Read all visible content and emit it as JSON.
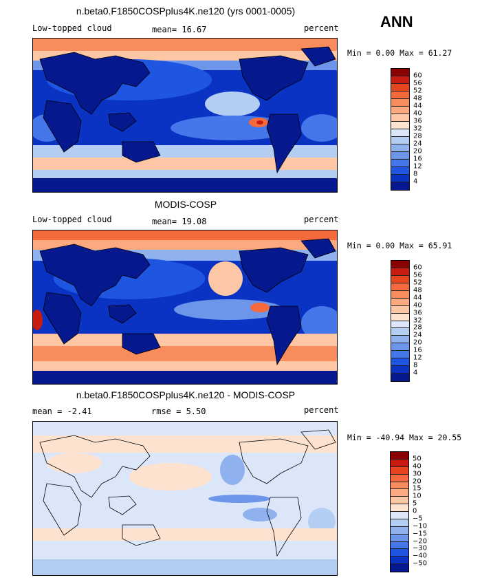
{
  "season": "ANN",
  "panels": [
    {
      "title": "n.beta0.F1850COSPplus4K.ne120 (yrs 0001-0005)",
      "left": "Low-topped cloud",
      "center": "mean=  16.67",
      "right": "percent",
      "stat": "Min =   0.00 Max =  61.27",
      "ticks": [
        "60",
        "56",
        "52",
        "48",
        "44",
        "40",
        "36",
        "32",
        "28",
        "24",
        "20",
        "16",
        "12",
        "8",
        "4"
      ],
      "colors": [
        "#8b0000",
        "#c81c10",
        "#e6451f",
        "#f46a3c",
        "#f98c5c",
        "#fca97f",
        "#fdc7a6",
        "#fde2d0",
        "#dbe7f9",
        "#b4cdf3",
        "#8fb2ee",
        "#6d96ea",
        "#4677ea",
        "#1f56e1",
        "#0a33c4",
        "#05188e"
      ]
    },
    {
      "title": "MODIS-COSP",
      "left": "Low-topped cloud",
      "center": "mean=  19.08",
      "right": "percent",
      "stat": "Min =   0.00 Max =  65.91",
      "ticks": [
        "60",
        "56",
        "52",
        "48",
        "44",
        "40",
        "36",
        "32",
        "28",
        "24",
        "20",
        "16",
        "12",
        "8",
        "4"
      ],
      "colors": [
        "#8b0000",
        "#c81c10",
        "#e6451f",
        "#f46a3c",
        "#f98c5c",
        "#fca97f",
        "#fdc7a6",
        "#fde2d0",
        "#dbe7f9",
        "#b4cdf3",
        "#8fb2ee",
        "#6d96ea",
        "#4677ea",
        "#1f56e1",
        "#0a33c4",
        "#05188e"
      ]
    },
    {
      "title": "n.beta0.F1850COSPplus4K.ne120 - MODIS-COSP",
      "left": "mean =  -2.41",
      "center": "rmse =   5.50",
      "right": "percent",
      "stat": "Min = -40.94 Max =  20.55",
      "ticks": [
        "50",
        "40",
        "30",
        "20",
        "15",
        "10",
        "5",
        "0",
        "−5",
        "−10",
        "−15",
        "−20",
        "−30",
        "−40",
        "−50"
      ],
      "colors": [
        "#8b0000",
        "#c81c10",
        "#e6451f",
        "#f46a3c",
        "#f98c5c",
        "#fca97f",
        "#fdc7a6",
        "#fde2d0",
        "#dbe7f9",
        "#b4cdf3",
        "#8fb2ee",
        "#6d96ea",
        "#4677ea",
        "#1f56e1",
        "#0a33c4",
        "#05188e"
      ]
    }
  ]
}
